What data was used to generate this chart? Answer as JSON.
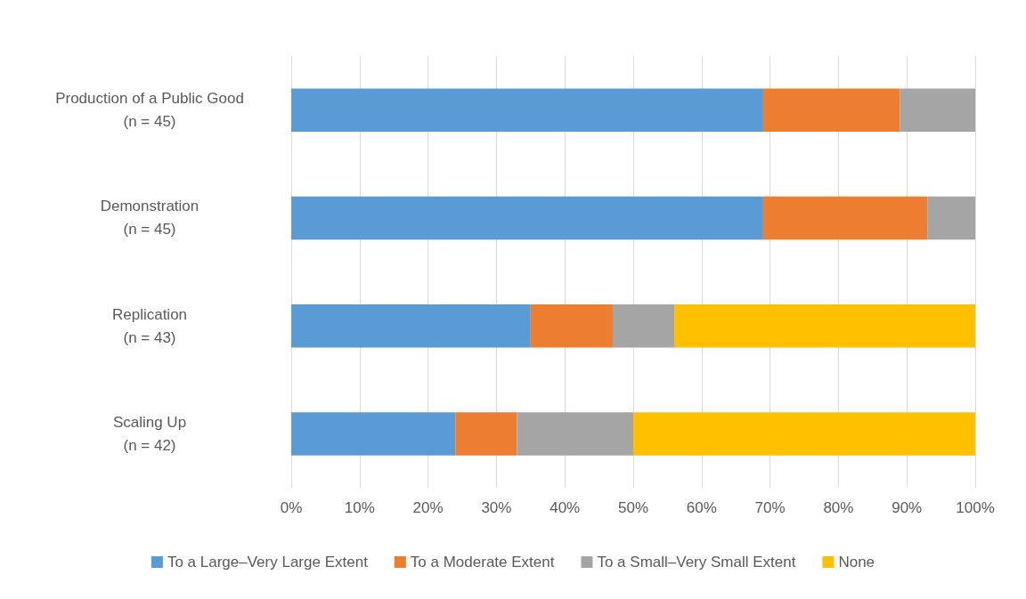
{
  "chart_data": {
    "type": "bar",
    "orientation": "horizontal",
    "stacked": true,
    "categories": [
      "Production of a Public Good\n(n = 45)",
      "Demonstration\n(n = 45)",
      "Replication\n(n = 43)",
      "Scaling Up\n(n = 42)"
    ],
    "series": [
      {
        "name": "To a Large–Very Large Extent",
        "color": "#5b9bd5",
        "values": [
          69,
          69,
          35,
          24
        ]
      },
      {
        "name": "To a Moderate Extent",
        "color": "#ed7d31",
        "values": [
          20,
          24,
          12,
          9
        ]
      },
      {
        "name": "To a Small–Very Small Extent",
        "color": "#a5a5a5",
        "values": [
          11,
          7,
          9,
          17
        ]
      },
      {
        "name": "None",
        "color": "#ffc000",
        "values": [
          0,
          0,
          44,
          50
        ]
      }
    ],
    "xlim": [
      0,
      100
    ],
    "xticks": [
      {
        "value": 0,
        "label": "0%"
      },
      {
        "value": 10,
        "label": "10%"
      },
      {
        "value": 20,
        "label": "20%"
      },
      {
        "value": 30,
        "label": "30%"
      },
      {
        "value": 40,
        "label": "40%"
      },
      {
        "value": 50,
        "label": "50%"
      },
      {
        "value": 60,
        "label": "60%"
      },
      {
        "value": 70,
        "label": "70%"
      },
      {
        "value": 80,
        "label": "80%"
      },
      {
        "value": 90,
        "label": "90%"
      },
      {
        "value": 100,
        "label": "100%"
      }
    ],
    "grid": "x",
    "legend": "bottom"
  }
}
